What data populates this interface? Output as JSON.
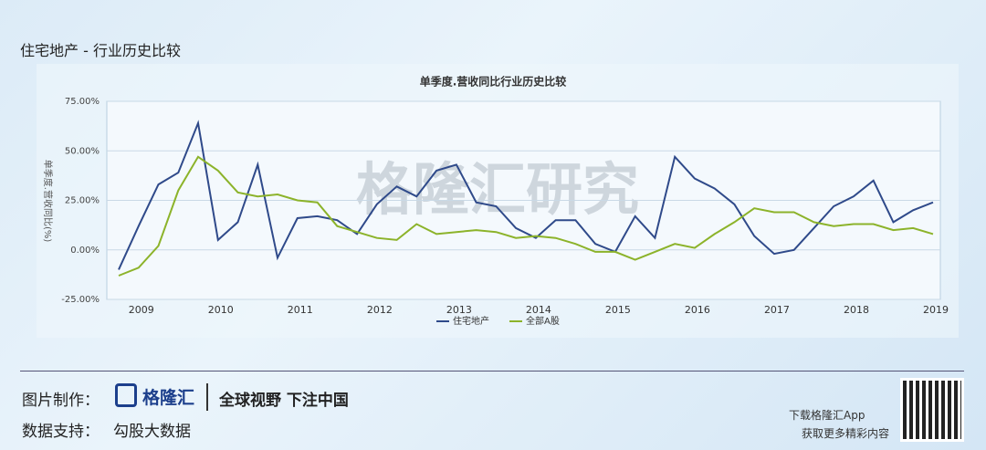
{
  "header": {
    "title": "住宅地产 - 行业历史比较"
  },
  "footer": {
    "made_by_label": "图片制作：",
    "brand": "格隆汇",
    "slogan": "全球视野 下注中国",
    "data_label": "数据支持：",
    "data_source": "勾股大数据",
    "app_download": "下载格隆汇App",
    "app_more": "获取更多精彩内容"
  },
  "chart_data": {
    "type": "line",
    "title": "单季度.营收同比行业历史比较",
    "y_label": "单季度.营收同比(%)",
    "watermark": "格隆汇研究",
    "categories": [
      null,
      "2009",
      null,
      null,
      null,
      "2010",
      null,
      null,
      null,
      "2011",
      null,
      null,
      null,
      "2012",
      null,
      null,
      null,
      "2013",
      null,
      null,
      null,
      "2014",
      null,
      null,
      null,
      "2015",
      null,
      null,
      null,
      "2016",
      null,
      null,
      null,
      "2017",
      null,
      null,
      null,
      "2018",
      null,
      null,
      null,
      "2019"
    ],
    "series": [
      {
        "name": "住宅地产",
        "color": "#2f4a8a",
        "values": [
          -10,
          12,
          33,
          39,
          64,
          5,
          14,
          43,
          -4,
          16,
          17,
          15,
          8,
          23,
          32,
          27,
          40,
          43,
          24,
          22,
          11,
          6,
          15,
          15,
          3,
          -1,
          17,
          6,
          47,
          36,
          31,
          23,
          7,
          -2,
          0,
          11,
          22,
          27,
          35,
          14,
          20,
          24
        ]
      },
      {
        "name": "全部A股",
        "color": "#8cb32a",
        "values": [
          -13,
          -9,
          2,
          30,
          47,
          40,
          29,
          27,
          28,
          25,
          24,
          12,
          9,
          6,
          5,
          13,
          8,
          9,
          10,
          9,
          6,
          7,
          6,
          3,
          -1,
          -1,
          -5,
          -1,
          3,
          1,
          8,
          14,
          21,
          19,
          19,
          14,
          12,
          13,
          13,
          10,
          11,
          8
        ]
      }
    ],
    "ylim": [
      -25,
      75
    ],
    "yticks": [
      {
        "value": -25,
        "label": "-25.00%"
      },
      {
        "value": 0,
        "label": "0.00%"
      },
      {
        "value": 25,
        "label": "25.00%"
      },
      {
        "value": 50,
        "label": "50.00%"
      },
      {
        "value": 75,
        "label": "75.00%"
      }
    ],
    "grid": true,
    "legend": "bottom"
  }
}
